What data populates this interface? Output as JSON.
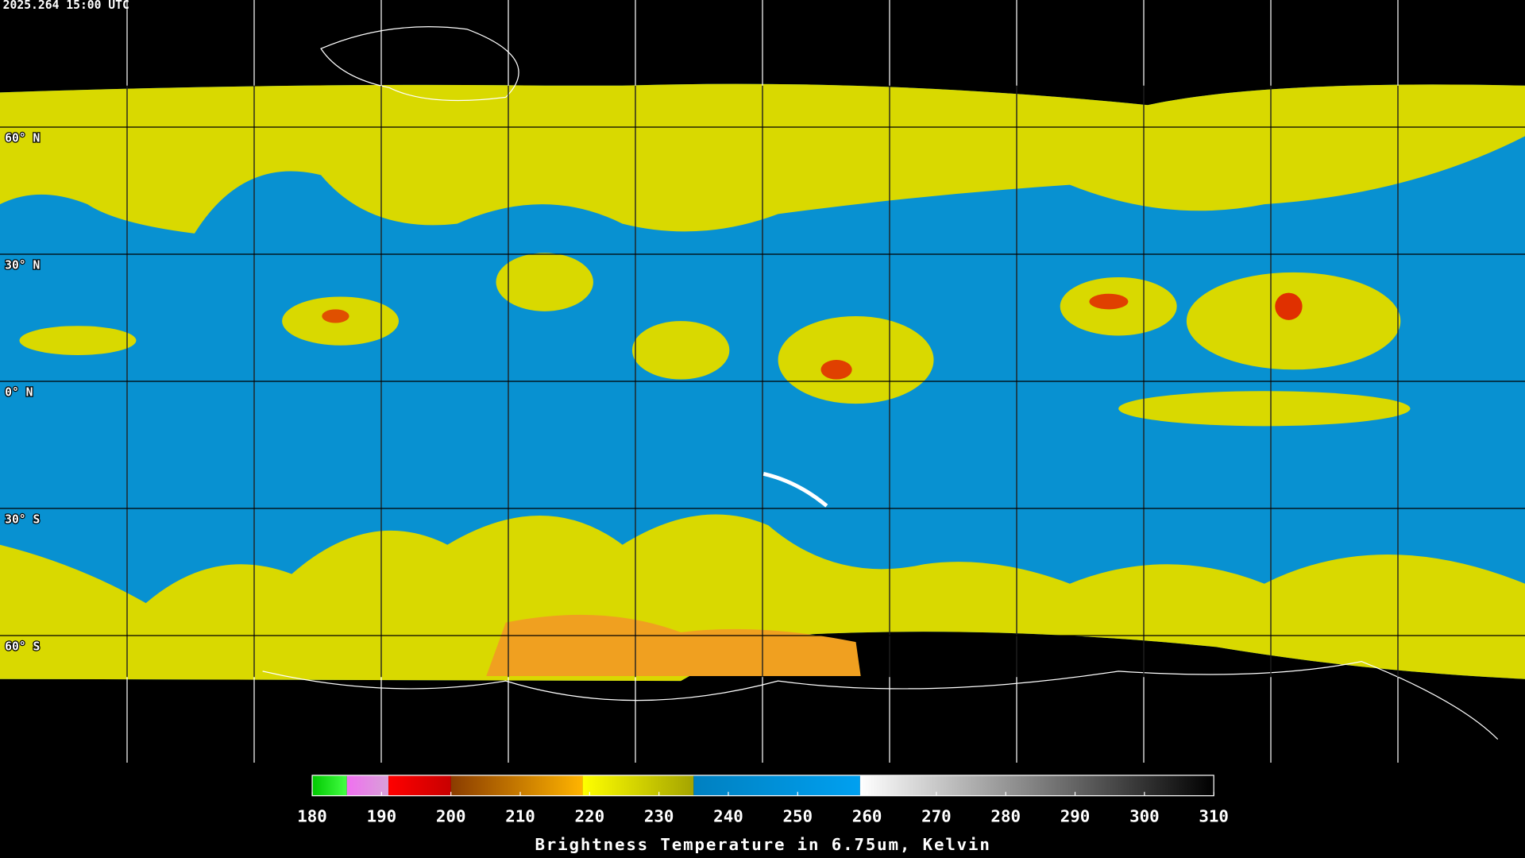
{
  "header": {
    "timestamp": "2025.264 15:00 UTC"
  },
  "map": {
    "latitude_labels": [
      {
        "value": 60,
        "label": "60° N"
      },
      {
        "value": 30,
        "label": "30° N"
      },
      {
        "value": 0,
        "label": "0° N"
      },
      {
        "value": -30,
        "label": "30° S"
      },
      {
        "value": -60,
        "label": "60° S"
      }
    ]
  },
  "colorbar": {
    "title": "Brightness Temperature in 6.75um, Kelvin",
    "range": [
      180,
      310
    ],
    "ticks": [
      180,
      190,
      200,
      210,
      220,
      230,
      240,
      250,
      260,
      270,
      280,
      290,
      300,
      310
    ],
    "stops": [
      {
        "from": 180,
        "to": 185,
        "colors": [
          "#00c800",
          "#44ff44"
        ]
      },
      {
        "from": 185,
        "to": 191,
        "colors": [
          "#f070f0",
          "#d8a0d8"
        ]
      },
      {
        "from": 191,
        "to": 200,
        "colors": [
          "#ff0000",
          "#c80000"
        ]
      },
      {
        "from": 200,
        "to": 219,
        "colors": [
          "#8a3c00",
          "#ffb400"
        ]
      },
      {
        "from": 219,
        "to": 235,
        "colors": [
          "#ffff00",
          "#a4a400"
        ]
      },
      {
        "from": 235,
        "to": 259,
        "colors": [
          "#0080c0",
          "#00a0f0"
        ]
      },
      {
        "from": 259,
        "to": 310,
        "colors": [
          "#ffffff",
          "#000000"
        ]
      }
    ]
  }
}
